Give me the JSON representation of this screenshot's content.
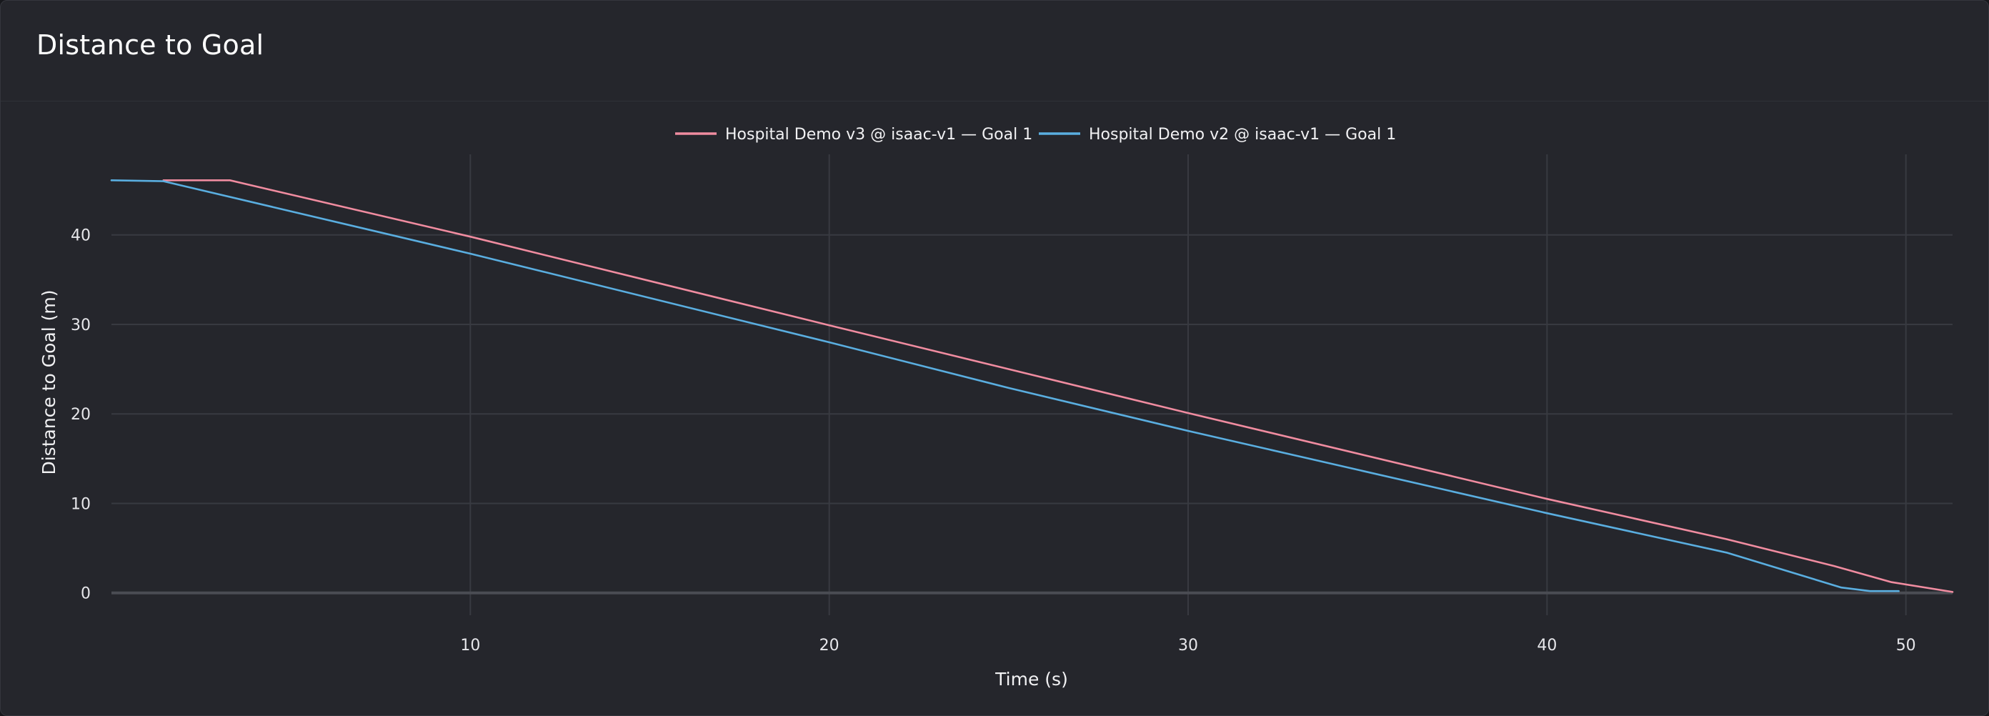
{
  "panel": {
    "title": "Distance to Goal"
  },
  "chart_data": {
    "type": "line",
    "xlabel": "Time (s)",
    "ylabel": "Distance to Goal (m)",
    "xlim": [
      0,
      51.3
    ],
    "ylim": [
      -2.5,
      49
    ],
    "x_ticks": [
      10,
      20,
      30,
      40,
      50
    ],
    "y_ticks": [
      0,
      10,
      20,
      30,
      40
    ],
    "grid": true,
    "legend_position": "top",
    "series": [
      {
        "name": "Hospital Demo v3 @ isaac-v1 — Goal 1",
        "color": "#f08ca0",
        "points": [
          [
            1.45,
            46.1
          ],
          [
            3.3,
            46.1
          ],
          [
            10,
            39.8
          ],
          [
            20,
            29.9
          ],
          [
            30,
            20.1
          ],
          [
            40,
            10.5
          ],
          [
            45,
            6.0
          ],
          [
            48,
            3.0
          ],
          [
            49.6,
            1.2
          ],
          [
            51.3,
            0.1
          ]
        ]
      },
      {
        "name": "Hospital Demo v2 @ isaac-v1 — Goal 1",
        "color": "#5aaee0",
        "points": [
          [
            0,
            46.1
          ],
          [
            1.45,
            46.0
          ],
          [
            10,
            37.9
          ],
          [
            20,
            28.0
          ],
          [
            25,
            22.9
          ],
          [
            30,
            18.1
          ],
          [
            40,
            8.9
          ],
          [
            45,
            4.5
          ],
          [
            48.2,
            0.6
          ],
          [
            49.0,
            0.2
          ],
          [
            49.8,
            0.2
          ]
        ]
      }
    ]
  }
}
